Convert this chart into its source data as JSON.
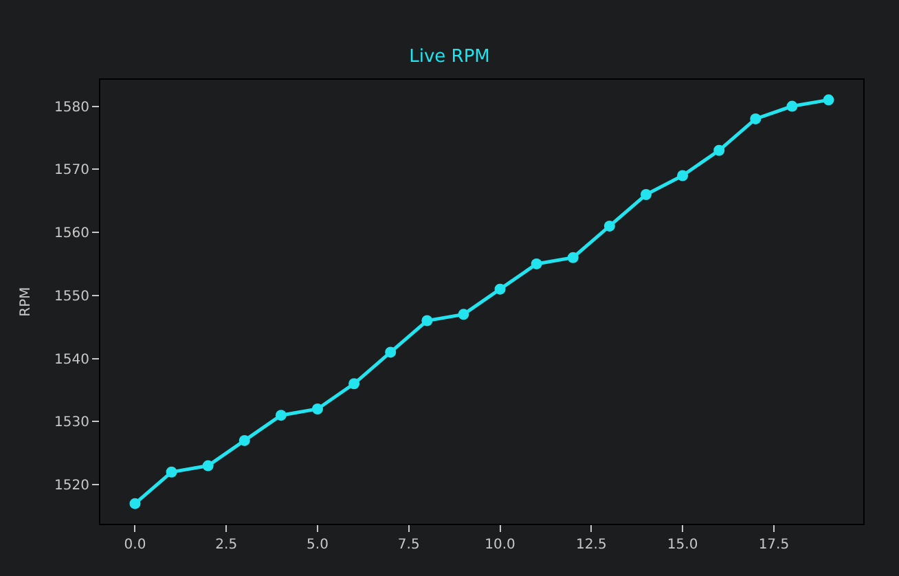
{
  "chart_data": {
    "type": "line",
    "title": "Live RPM",
    "ylabel": "RPM",
    "x": [
      0,
      1,
      2,
      3,
      4,
      5,
      6,
      7,
      8,
      9,
      10,
      11,
      12,
      13,
      14,
      15,
      16,
      17,
      18,
      19
    ],
    "series": [
      {
        "color": "#22e3ee",
        "values": [
          1517,
          1522,
          1523,
          1527,
          1531,
          1532,
          1536,
          1541,
          1546,
          1547,
          1551,
          1555,
          1556,
          1561,
          1566,
          1569,
          1573,
          1578,
          1580,
          1581
        ]
      }
    ],
    "xlim": [
      -0.95,
      19.95
    ],
    "xticks": [
      {
        "value": 0,
        "label": "0.0"
      },
      {
        "value": 2.5,
        "label": "2.5"
      },
      {
        "value": 5,
        "label": "5.0"
      },
      {
        "value": 7.5,
        "label": "7.5"
      },
      {
        "value": 10,
        "label": "10.0"
      },
      {
        "value": 12.5,
        "label": "12.5"
      },
      {
        "value": 15,
        "label": "15.0"
      },
      {
        "value": 17.5,
        "label": "17.5"
      }
    ],
    "ylim": [
      1513.8,
      1584.2
    ],
    "yticks": [
      1520,
      1530,
      1540,
      1550,
      1560,
      1570,
      1580
    ],
    "grid": false,
    "legend": false,
    "marker": "circle",
    "line_style": "solid"
  }
}
